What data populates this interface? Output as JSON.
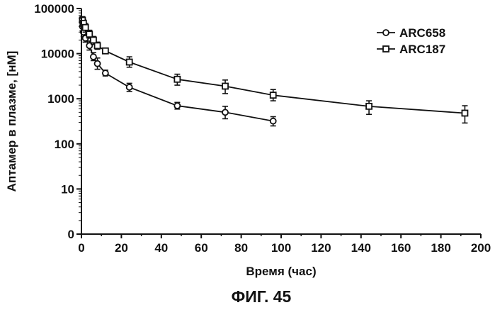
{
  "chart_data": {
    "type": "line",
    "title": "",
    "xlabel": "Время (час)",
    "ylabel": "Аптамер в плазме, [нМ]",
    "caption": "ФИГ. 45",
    "xlim": [
      0,
      200
    ],
    "x_ticks": [
      "0",
      "20",
      "40",
      "60",
      "80",
      "100",
      "120",
      "140",
      "160",
      "180",
      "200"
    ],
    "y_scale": "log",
    "y_ticks": [
      "0",
      "10",
      "100",
      "1000",
      "10000",
      "100000"
    ],
    "legend_position": "top-right",
    "grid": false,
    "series": [
      {
        "name": "ARC658",
        "marker": "circle",
        "x": [
          0.5,
          1,
          2,
          4,
          6,
          8,
          12,
          24,
          48,
          72,
          96
        ],
        "y": [
          40000,
          30000,
          22000,
          15000,
          8500,
          6000,
          3700,
          1800,
          700,
          500,
          320
        ],
        "err_low": [
          32000,
          24000,
          18000,
          12000,
          7000,
          4500,
          3200,
          1450,
          590,
          360,
          250
        ],
        "err_high": [
          50000,
          37000,
          27000,
          19000,
          10500,
          8000,
          4300,
          2200,
          830,
          680,
          400
        ]
      },
      {
        "name": "ARC187",
        "marker": "square",
        "x": [
          0.5,
          1,
          2,
          4,
          6,
          8,
          12,
          24,
          48,
          72,
          96,
          144,
          192
        ],
        "y": [
          55000,
          47000,
          38000,
          27000,
          20000,
          15000,
          11500,
          6500,
          2700,
          1900,
          1200,
          680,
          480
        ],
        "err_low": [
          45000,
          38000,
          30000,
          22000,
          16000,
          12500,
          10000,
          5000,
          2000,
          1300,
          900,
          450,
          290
        ],
        "err_high": [
          66000,
          57000,
          47000,
          33000,
          24000,
          18000,
          13000,
          8500,
          3500,
          2600,
          1600,
          900,
          700
        ]
      }
    ]
  }
}
